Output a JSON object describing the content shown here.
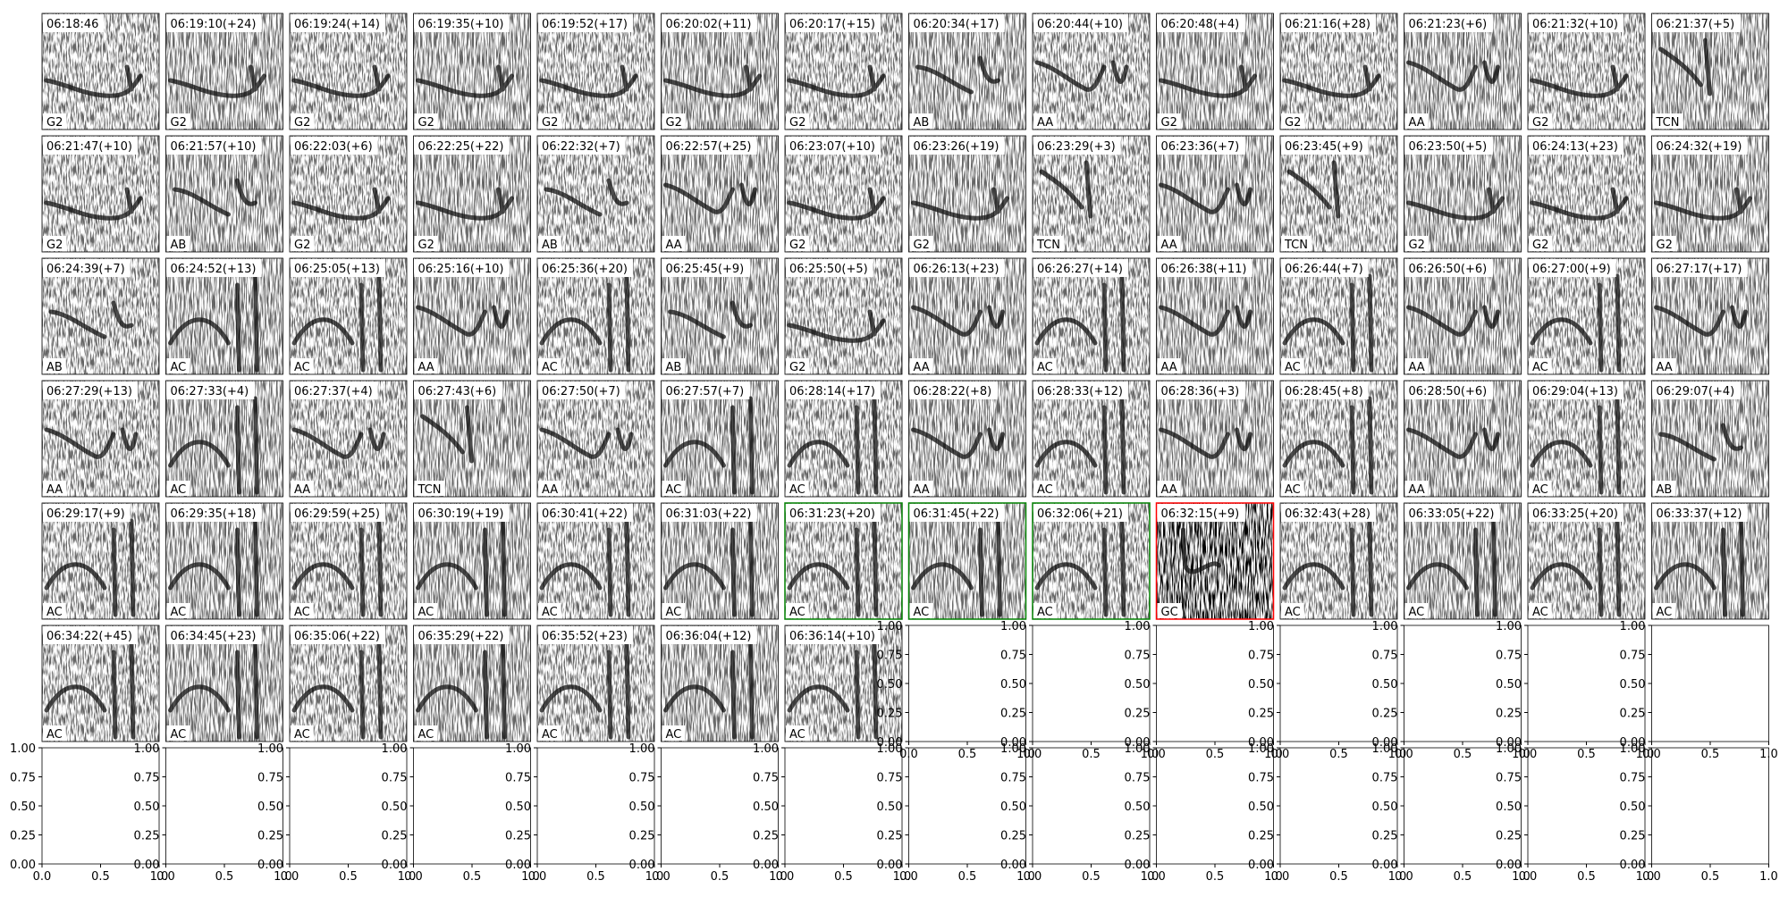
{
  "panels": [
    {
      "title": "06:18:46",
      "label": "G2"
    },
    {
      "title": "06:19:10(+24)",
      "label": "G2"
    },
    {
      "title": "06:19:24(+14)",
      "label": "G2"
    },
    {
      "title": "06:19:35(+10)",
      "label": "G2"
    },
    {
      "title": "06:19:52(+17)",
      "label": "G2"
    },
    {
      "title": "06:20:02(+11)",
      "label": "G2"
    },
    {
      "title": "06:20:17(+15)",
      "label": "G2"
    },
    {
      "title": "06:20:34(+17)",
      "label": "AB"
    },
    {
      "title": "06:20:44(+10)",
      "label": "AA"
    },
    {
      "title": "06:20:48(+4)",
      "label": "G2"
    },
    {
      "title": "06:21:16(+28)",
      "label": "G2"
    },
    {
      "title": "06:21:23(+6)",
      "label": "AA"
    },
    {
      "title": "06:21:32(+10)",
      "label": "G2"
    },
    {
      "title": "06:21:37(+5)",
      "label": "TCN"
    },
    {
      "title": "06:21:47(+10)",
      "label": "G2"
    },
    {
      "title": "06:21:57(+10)",
      "label": "AB"
    },
    {
      "title": "06:22:03(+6)",
      "label": "G2"
    },
    {
      "title": "06:22:25(+22)",
      "label": "G2"
    },
    {
      "title": "06:22:32(+7)",
      "label": "AB"
    },
    {
      "title": "06:22:57(+25)",
      "label": "AA"
    },
    {
      "title": "06:23:07(+10)",
      "label": "G2"
    },
    {
      "title": "06:23:26(+19)",
      "label": "G2"
    },
    {
      "title": "06:23:29(+3)",
      "label": "TCN"
    },
    {
      "title": "06:23:36(+7)",
      "label": "AA"
    },
    {
      "title": "06:23:45(+9)",
      "label": "TCN"
    },
    {
      "title": "06:23:50(+5)",
      "label": "G2"
    },
    {
      "title": "06:24:13(+23)",
      "label": "G2"
    },
    {
      "title": "06:24:32(+19)",
      "label": "G2"
    },
    {
      "title": "06:24:39(+7)",
      "label": "AB"
    },
    {
      "title": "06:24:52(+13)",
      "label": "AC"
    },
    {
      "title": "06:25:05(+13)",
      "label": "AC"
    },
    {
      "title": "06:25:16(+10)",
      "label": "AA"
    },
    {
      "title": "06:25:36(+20)",
      "label": "AC"
    },
    {
      "title": "06:25:45(+9)",
      "label": "AB"
    },
    {
      "title": "06:25:50(+5)",
      "label": "G2"
    },
    {
      "title": "06:26:13(+23)",
      "label": "AA"
    },
    {
      "title": "06:26:27(+14)",
      "label": "AC"
    },
    {
      "title": "06:26:38(+11)",
      "label": "AA"
    },
    {
      "title": "06:26:44(+7)",
      "label": "AC"
    },
    {
      "title": "06:26:50(+6)",
      "label": "AA"
    },
    {
      "title": "06:27:00(+9)",
      "label": "AC"
    },
    {
      "title": "06:27:17(+17)",
      "label": "AA"
    },
    {
      "title": "06:27:29(+13)",
      "label": "AA"
    },
    {
      "title": "06:27:33(+4)",
      "label": "AC"
    },
    {
      "title": "06:27:37(+4)",
      "label": "AA"
    },
    {
      "title": "06:27:43(+6)",
      "label": "TCN"
    },
    {
      "title": "06:27:50(+7)",
      "label": "AA"
    },
    {
      "title": "06:27:57(+7)",
      "label": "AC"
    },
    {
      "title": "06:28:14(+17)",
      "label": "AC"
    },
    {
      "title": "06:28:22(+8)",
      "label": "AA"
    },
    {
      "title": "06:28:33(+12)",
      "label": "AC"
    },
    {
      "title": "06:28:36(+3)",
      "label": "AA"
    },
    {
      "title": "06:28:45(+8)",
      "label": "AC"
    },
    {
      "title": "06:28:50(+6)",
      "label": "AA"
    },
    {
      "title": "06:29:04(+13)",
      "label": "AC"
    },
    {
      "title": "06:29:07(+4)",
      "label": "AB"
    },
    {
      "title": "06:29:17(+9)",
      "label": "AC"
    },
    {
      "title": "06:29:35(+18)",
      "label": "AC"
    },
    {
      "title": "06:29:59(+25)",
      "label": "AC"
    },
    {
      "title": "06:30:19(+19)",
      "label": "AC"
    },
    {
      "title": "06:30:41(+22)",
      "label": "AC"
    },
    {
      "title": "06:31:03(+22)",
      "label": "AC"
    },
    {
      "title": "06:31:23(+20)",
      "label": "AC",
      "frame": "green"
    },
    {
      "title": "06:31:45(+22)",
      "label": "AC",
      "frame": "green"
    },
    {
      "title": "06:32:06(+21)",
      "label": "AC",
      "frame": "green"
    },
    {
      "title": "06:32:15(+9)",
      "label": "GC",
      "frame": "red"
    },
    {
      "title": "06:32:43(+28)",
      "label": "AC"
    },
    {
      "title": "06:33:05(+22)",
      "label": "AC"
    },
    {
      "title": "06:33:25(+20)",
      "label": "AC"
    },
    {
      "title": "06:33:37(+12)",
      "label": "AC"
    },
    {
      "title": "06:34:22(+45)",
      "label": "AC"
    },
    {
      "title": "06:34:45(+23)",
      "label": "AC"
    },
    {
      "title": "06:35:06(+22)",
      "label": "AC"
    },
    {
      "title": "06:35:29(+22)",
      "label": "AC"
    },
    {
      "title": "06:35:52(+23)",
      "label": "AC"
    },
    {
      "title": "06:36:04(+12)",
      "label": "AC"
    },
    {
      "title": "06:36:14(+10)",
      "label": "AC"
    }
  ],
  "empty_axes": {
    "yticks": [
      {
        "value": 0,
        "label": "0.00"
      },
      {
        "value": 0.25,
        "label": "0.25"
      },
      {
        "value": 0.5,
        "label": "0.50"
      },
      {
        "value": 0.75,
        "label": "0.75"
      },
      {
        "value": 1,
        "label": "1.00"
      }
    ],
    "xticks": [
      {
        "value": 0,
        "label": "0.0"
      },
      {
        "value": 0.5,
        "label": "0.5"
      },
      {
        "value": 1,
        "label": "1.0"
      }
    ]
  }
}
